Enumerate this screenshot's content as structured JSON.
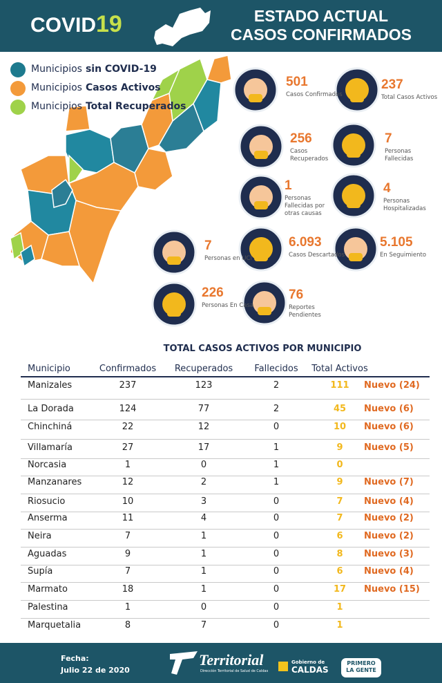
{
  "header": {
    "title_a": "COVID",
    "title_b": "19",
    "subtitle_1": "ESTADO ACTUAL",
    "subtitle_2": "CASOS CONFIRMADOS"
  },
  "legend": [
    {
      "prefix": "Municipios",
      "label": "sin COVID-19"
    },
    {
      "prefix": "Municipios",
      "label": "Casos Activos"
    },
    {
      "prefix": "Municipios",
      "label": "Total Recuperados"
    }
  ],
  "stats": [
    {
      "value": "501",
      "label": "Casos Confirmados"
    },
    {
      "value": "237",
      "label": "Total Casos Activos"
    },
    {
      "value": "256",
      "label": "Casos Recuperados"
    },
    {
      "value": "7",
      "label": "Personas Fallecidas"
    },
    {
      "value": "1",
      "label": "Personas Fallecidas por otras causas"
    },
    {
      "value": "4",
      "label": "Personas Hospitalizadas"
    },
    {
      "value": "7",
      "label": "Personas en UCI"
    },
    {
      "value": "6.093",
      "label": "Casos Descartados"
    },
    {
      "value": "5.105",
      "label": "En Seguimiento"
    },
    {
      "value": "226",
      "label": "Personas En Casa"
    },
    {
      "value": "76",
      "label": "Reportes Pendientes"
    }
  ],
  "table": {
    "title": "TOTAL CASOS ACTIVOS POR MUNICIPIO",
    "columns": [
      "Municipio",
      "Confirmados",
      "Recuperados",
      "Fallecidos",
      "Total Activos"
    ],
    "rows": [
      {
        "cells": [
          "Manizales",
          237,
          123,
          2,
          111
        ],
        "nuevo": "Nuevo (24)"
      },
      {
        "cells": [
          "La Dorada",
          124,
          77,
          2,
          45
        ],
        "nuevo": "Nuevo (6)"
      },
      {
        "cells": [
          "Chinchiná",
          22,
          12,
          0,
          10
        ],
        "nuevo": "Nuevo (6)"
      },
      {
        "cells": [
          "Villamaría",
          27,
          17,
          1,
          9
        ],
        "nuevo": "Nuevo (5)"
      },
      {
        "cells": [
          "Norcasia",
          1,
          0,
          1,
          0
        ]
      },
      {
        "cells": [
          "Manzanares",
          12,
          2,
          1,
          9
        ],
        "nuevo": "Nuevo (7)"
      },
      {
        "cells": [
          "Riosucio",
          10,
          3,
          0,
          7
        ],
        "nuevo": "Nuevo (4)"
      },
      {
        "cells": [
          "Anserma",
          11,
          4,
          0,
          7
        ],
        "nuevo": "Nuevo (2)"
      },
      {
        "cells": [
          "Neira",
          7,
          1,
          0,
          6
        ],
        "nuevo": "Nuevo (2)"
      },
      {
        "cells": [
          "Aguadas",
          9,
          1,
          0,
          8
        ],
        "nuevo": "Nuevo (3)"
      },
      {
        "cells": [
          "Supía",
          7,
          1,
          0,
          6
        ],
        "nuevo": "Nuevo (4)"
      },
      {
        "cells": [
          "Marmato",
          18,
          1,
          0,
          17
        ],
        "nuevo": "Nuevo (15)"
      },
      {
        "cells": [
          "Palestina",
          1,
          0,
          0,
          1
        ]
      },
      {
        "cells": [
          "Marquetalia",
          8,
          7,
          0,
          1
        ]
      }
    ]
  },
  "footer": {
    "date_label": "Fecha:",
    "date": "Julio 22 de 2020",
    "brand": "Territorial",
    "brand_sub": "Dirección Territorial de Salud de Caldas",
    "gov_1": "Gobierno de",
    "gov_2": "CALDAS",
    "slogan_1": "PRIMERO",
    "slogan_2": "LA GENTE"
  }
}
